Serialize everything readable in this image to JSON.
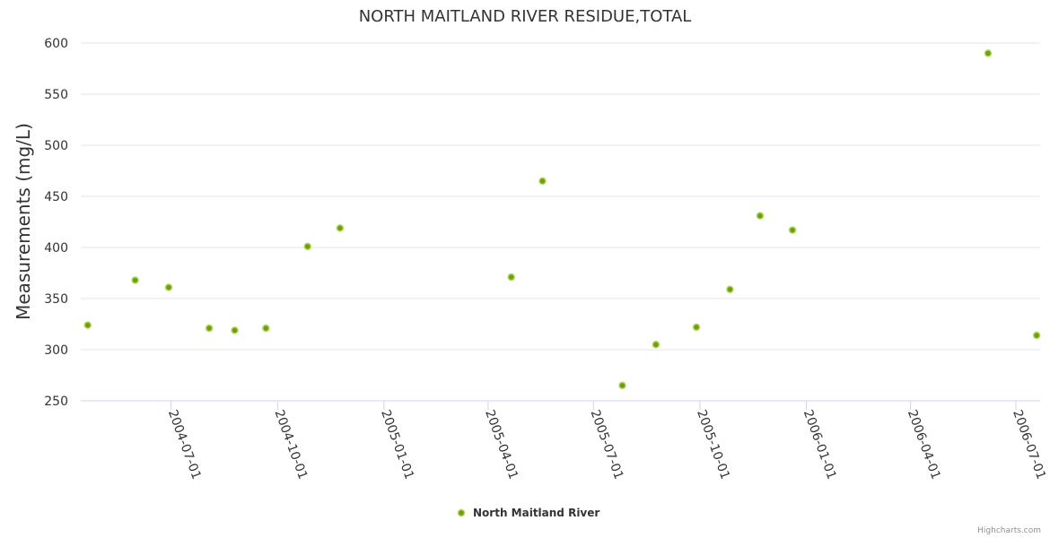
{
  "chart_data": {
    "type": "scatter",
    "title": "NORTH MAITLAND RIVER RESIDUE,TOTAL",
    "xlabel": "",
    "ylabel": "Measurements (mg/L)",
    "ylim": [
      250,
      600
    ],
    "yticks": [
      250,
      300,
      350,
      400,
      450,
      500,
      550,
      600
    ],
    "xlim": [
      "2004-04-14",
      "2006-07-22"
    ],
    "xticks": [
      "2004-07-01",
      "2004-10-01",
      "2005-01-01",
      "2005-04-01",
      "2005-07-01",
      "2005-10-01",
      "2006-01-01",
      "2006-04-01",
      "2006-07-01"
    ],
    "grid": true,
    "legend_position": "bottom-center",
    "series": [
      {
        "name": "North Maitland River",
        "color": "#6aa300",
        "points": [
          {
            "x": "2004-04-20",
            "y": 324
          },
          {
            "x": "2004-05-31",
            "y": 368
          },
          {
            "x": "2004-06-29",
            "y": 361
          },
          {
            "x": "2004-08-03",
            "y": 321
          },
          {
            "x": "2004-08-25",
            "y": 319
          },
          {
            "x": "2004-09-21",
            "y": 321
          },
          {
            "x": "2004-10-27",
            "y": 401
          },
          {
            "x": "2004-11-24",
            "y": 419
          },
          {
            "x": "2005-04-21",
            "y": 371
          },
          {
            "x": "2005-05-18",
            "y": 465
          },
          {
            "x": "2005-07-26",
            "y": 265
          },
          {
            "x": "2005-08-24",
            "y": 305
          },
          {
            "x": "2005-09-28",
            "y": 322
          },
          {
            "x": "2005-10-27",
            "y": 359
          },
          {
            "x": "2005-11-22",
            "y": 431
          },
          {
            "x": "2005-12-20",
            "y": 417
          },
          {
            "x": "2006-06-07",
            "y": 590
          },
          {
            "x": "2006-07-19",
            "y": 314
          }
        ]
      }
    ]
  },
  "credits": "Highcharts.com"
}
